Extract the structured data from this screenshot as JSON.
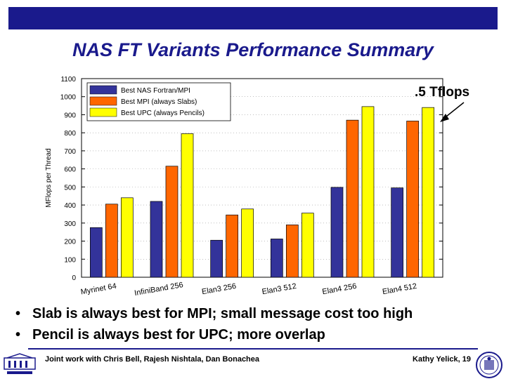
{
  "slide": {
    "title": "NAS FT Variants Performance Summary",
    "bullets": [
      "Slab is always best for MPI; small message cost too high",
      "Pencil is always best for UPC; more overlap"
    ],
    "footer_left": "Joint work with Chris Bell, Rajesh Nishtala, Dan Bonachea",
    "footer_right": "Kathy Yelick, 19",
    "bullet_char": "•"
  },
  "chart_data": {
    "type": "bar",
    "ylabel": "MFlops per Thread",
    "ylim": [
      0,
      1100
    ],
    "yticks": [
      0,
      100,
      200,
      300,
      400,
      500,
      600,
      700,
      800,
      900,
      1000,
      1100
    ],
    "categories": [
      "Myrinet 64",
      "InfiniBand 256",
      "Elan3 256",
      "Elan3 512",
      "Elan4 256",
      "Elan4 512"
    ],
    "series": [
      {
        "name": "Best NAS Fortran/MPI",
        "color": "#33339a",
        "values": [
          275,
          420,
          205,
          212,
          498,
          495
        ]
      },
      {
        "name": "Best MPI (always Slabs)",
        "color": "#ff6600",
        "values": [
          405,
          615,
          345,
          290,
          870,
          865
        ]
      },
      {
        "name": "Best UPC (always Pencils)",
        "color": "#ffff00",
        "values": [
          440,
          795,
          378,
          355,
          945,
          940
        ]
      }
    ],
    "annotation": ".5 Tflops",
    "legend_position": "top-left",
    "grid": true
  }
}
